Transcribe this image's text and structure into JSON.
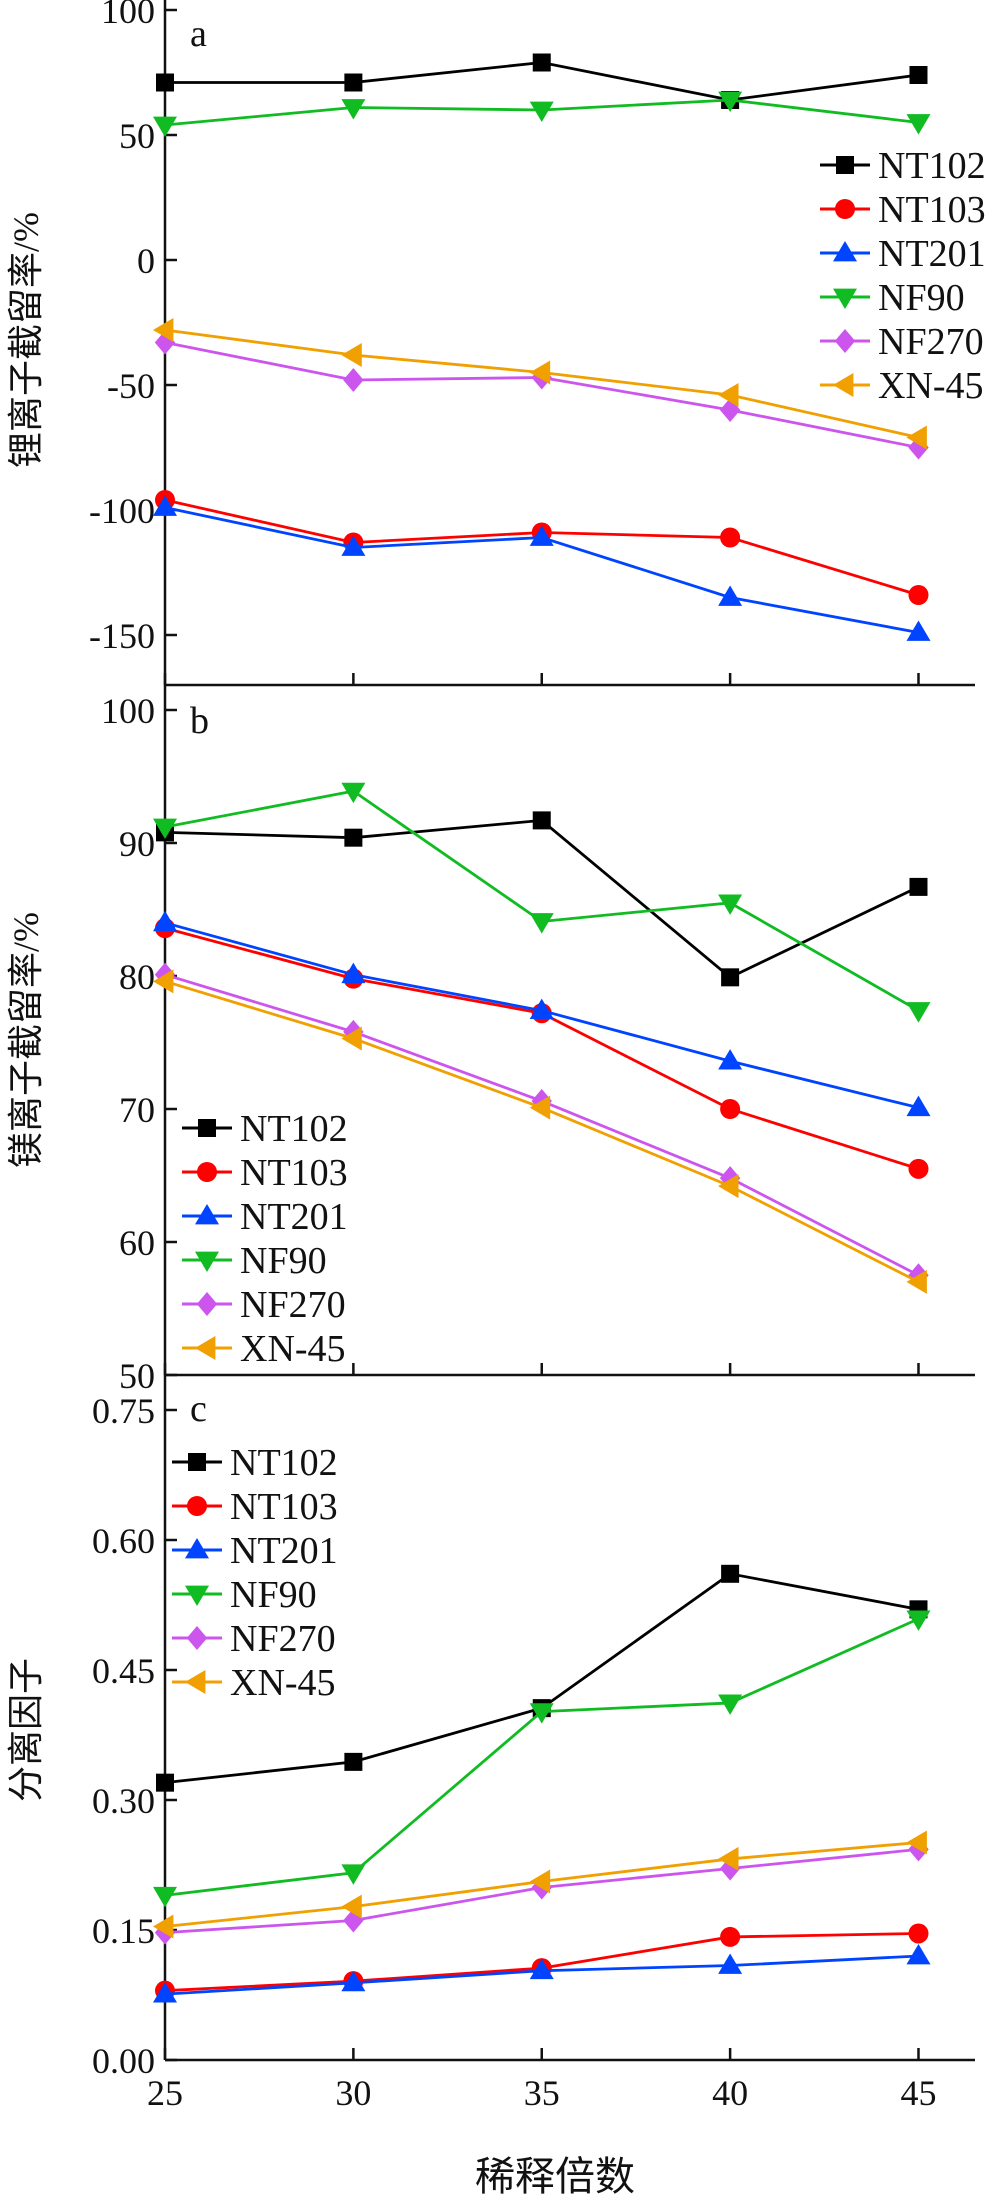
{
  "shared_xlabel": "稀释倍数",
  "chart_data": [
    {
      "type": "line",
      "panel_label": "a",
      "title": "",
      "ylabel": "锂离子截留率/%",
      "xlabel": "",
      "x": [
        25,
        30,
        35,
        40,
        45
      ],
      "xlim": [
        25,
        46.5
      ],
      "ylim": [
        -170,
        100
      ],
      "yticks": [
        100,
        50,
        0,
        -50,
        -100,
        -150
      ],
      "ytick_labels": [
        "100",
        "50",
        "0",
        "-50",
        "-100",
        "-150"
      ],
      "legend_position": "top-right",
      "series": [
        {
          "name": "NT102",
          "color": "#000000",
          "marker": "square",
          "values": [
            71,
            71,
            79,
            64,
            74
          ]
        },
        {
          "name": "NT103",
          "color": "#ff0000",
          "marker": "circle",
          "values": [
            -96,
            -113,
            -109,
            -111,
            -134
          ]
        },
        {
          "name": "NT201",
          "color": "#0044ff",
          "marker": "triangle-up",
          "values": [
            -99,
            -115,
            -111,
            -135,
            -149
          ]
        },
        {
          "name": "NF90",
          "color": "#11bb22",
          "marker": "triangle-down",
          "values": [
            54,
            61,
            60,
            64,
            55
          ]
        },
        {
          "name": "NF270",
          "color": "#cc55ee",
          "marker": "diamond",
          "values": [
            -33,
            -48,
            -47,
            -60,
            -75
          ]
        },
        {
          "name": "XN-45",
          "color": "#f0a000",
          "marker": "triangle-left",
          "values": [
            -28,
            -38,
            -45,
            -54,
            -71
          ]
        }
      ]
    },
    {
      "type": "line",
      "panel_label": "b",
      "title": "",
      "ylabel": "镁离子截留率/%",
      "xlabel": "",
      "x": [
        25,
        30,
        35,
        40,
        45
      ],
      "xlim": [
        25,
        46.5
      ],
      "ylim": [
        50,
        100
      ],
      "yticks": [
        100,
        90,
        80,
        70,
        60,
        50
      ],
      "ytick_labels": [
        "100",
        "90",
        "80",
        "70",
        "60",
        "50"
      ],
      "legend_position": "bottom-left",
      "series": [
        {
          "name": "NT102",
          "color": "#000000",
          "marker": "square",
          "values": [
            90.8,
            90.4,
            91.7,
            79.9,
            86.7
          ]
        },
        {
          "name": "NT103",
          "color": "#ff0000",
          "marker": "circle",
          "values": [
            83.6,
            79.8,
            77.2,
            70.0,
            65.5
          ]
        },
        {
          "name": "NT201",
          "color": "#0044ff",
          "marker": "triangle-up",
          "values": [
            84.0,
            80.1,
            77.4,
            73.6,
            70.1
          ]
        },
        {
          "name": "NF90",
          "color": "#11bb22",
          "marker": "triangle-down",
          "values": [
            91.2,
            93.9,
            84.1,
            85.5,
            77.4
          ]
        },
        {
          "name": "NF270",
          "color": "#cc55ee",
          "marker": "diamond",
          "values": [
            80.1,
            75.8,
            70.6,
            64.8,
            57.5
          ]
        },
        {
          "name": "XN-45",
          "color": "#f0a000",
          "marker": "triangle-left",
          "values": [
            79.6,
            75.3,
            70.1,
            64.2,
            57.0
          ]
        }
      ]
    },
    {
      "type": "line",
      "panel_label": "c",
      "title": "",
      "ylabel": "分离因子",
      "xlabel": "稀释倍数",
      "x": [
        25,
        30,
        35,
        40,
        45
      ],
      "xtick_labels": [
        "25",
        "30",
        "35",
        "40",
        "45"
      ],
      "xlim": [
        25,
        46.5
      ],
      "ylim": [
        0,
        0.75
      ],
      "yticks": [
        0.75,
        0.6,
        0.45,
        0.3,
        0.15,
        0.0
      ],
      "ytick_labels": [
        "0.75",
        "0.60",
        "0.45",
        "0.30",
        "0.15",
        "0.00"
      ],
      "legend_position": "top-left",
      "series": [
        {
          "name": "NT102",
          "color": "#000000",
          "marker": "square",
          "values": [
            0.32,
            0.344,
            0.406,
            0.561,
            0.52
          ]
        },
        {
          "name": "NT103",
          "color": "#ff0000",
          "marker": "circle",
          "values": [
            0.08,
            0.091,
            0.106,
            0.142,
            0.146
          ]
        },
        {
          "name": "NT201",
          "color": "#0044ff",
          "marker": "triangle-up",
          "values": [
            0.076,
            0.089,
            0.103,
            0.109,
            0.12
          ]
        },
        {
          "name": "NF90",
          "color": "#11bb22",
          "marker": "triangle-down",
          "values": [
            0.19,
            0.216,
            0.402,
            0.412,
            0.509
          ]
        },
        {
          "name": "NF270",
          "color": "#cc55ee",
          "marker": "diamond",
          "values": [
            0.147,
            0.161,
            0.199,
            0.221,
            0.243
          ]
        },
        {
          "name": "XN-45",
          "color": "#f0a000",
          "marker": "triangle-left",
          "values": [
            0.154,
            0.177,
            0.206,
            0.232,
            0.251
          ]
        }
      ]
    }
  ]
}
